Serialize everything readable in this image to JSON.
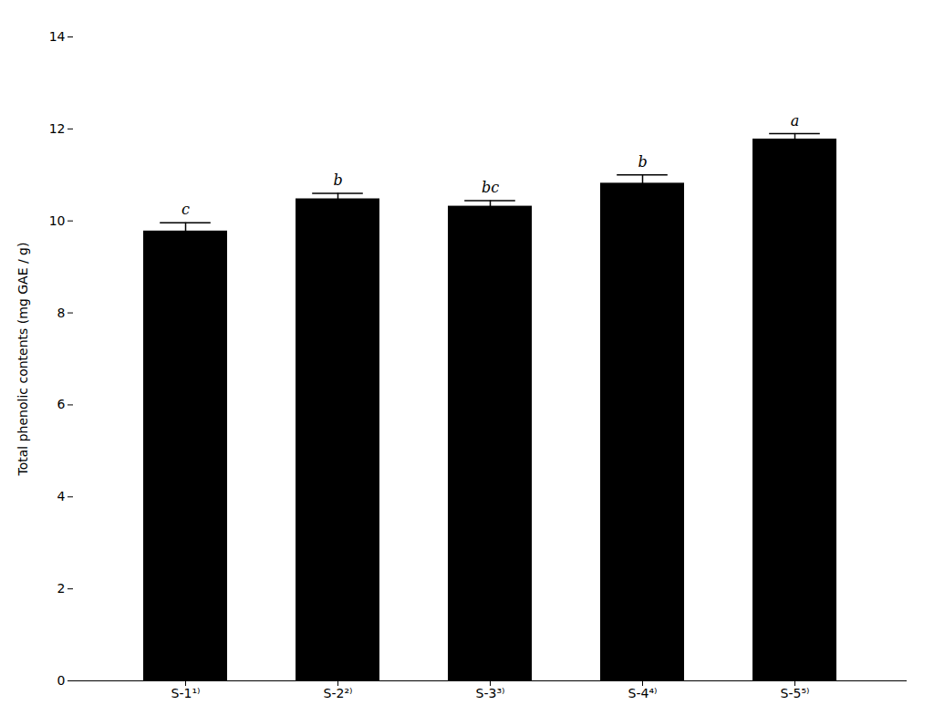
{
  "chart_data": {
    "type": "bar",
    "categories": [
      "S-1¹⁾",
      "S-2²⁾",
      "S-3³⁾",
      "S-4⁴⁾",
      "S-5⁵⁾"
    ],
    "values": [
      9.78,
      10.48,
      10.32,
      10.82,
      11.78
    ],
    "errors": [
      0.18,
      0.12,
      0.12,
      0.18,
      0.12
    ],
    "annotations": [
      "c",
      "b",
      "bc",
      "b",
      "a"
    ],
    "ylabel": "Total phenolic contents (mg GAE / g)",
    "ylim": [
      0,
      14
    ],
    "yticks": [
      0,
      2,
      4,
      6,
      8,
      10,
      12,
      14
    ],
    "grid": false
  }
}
